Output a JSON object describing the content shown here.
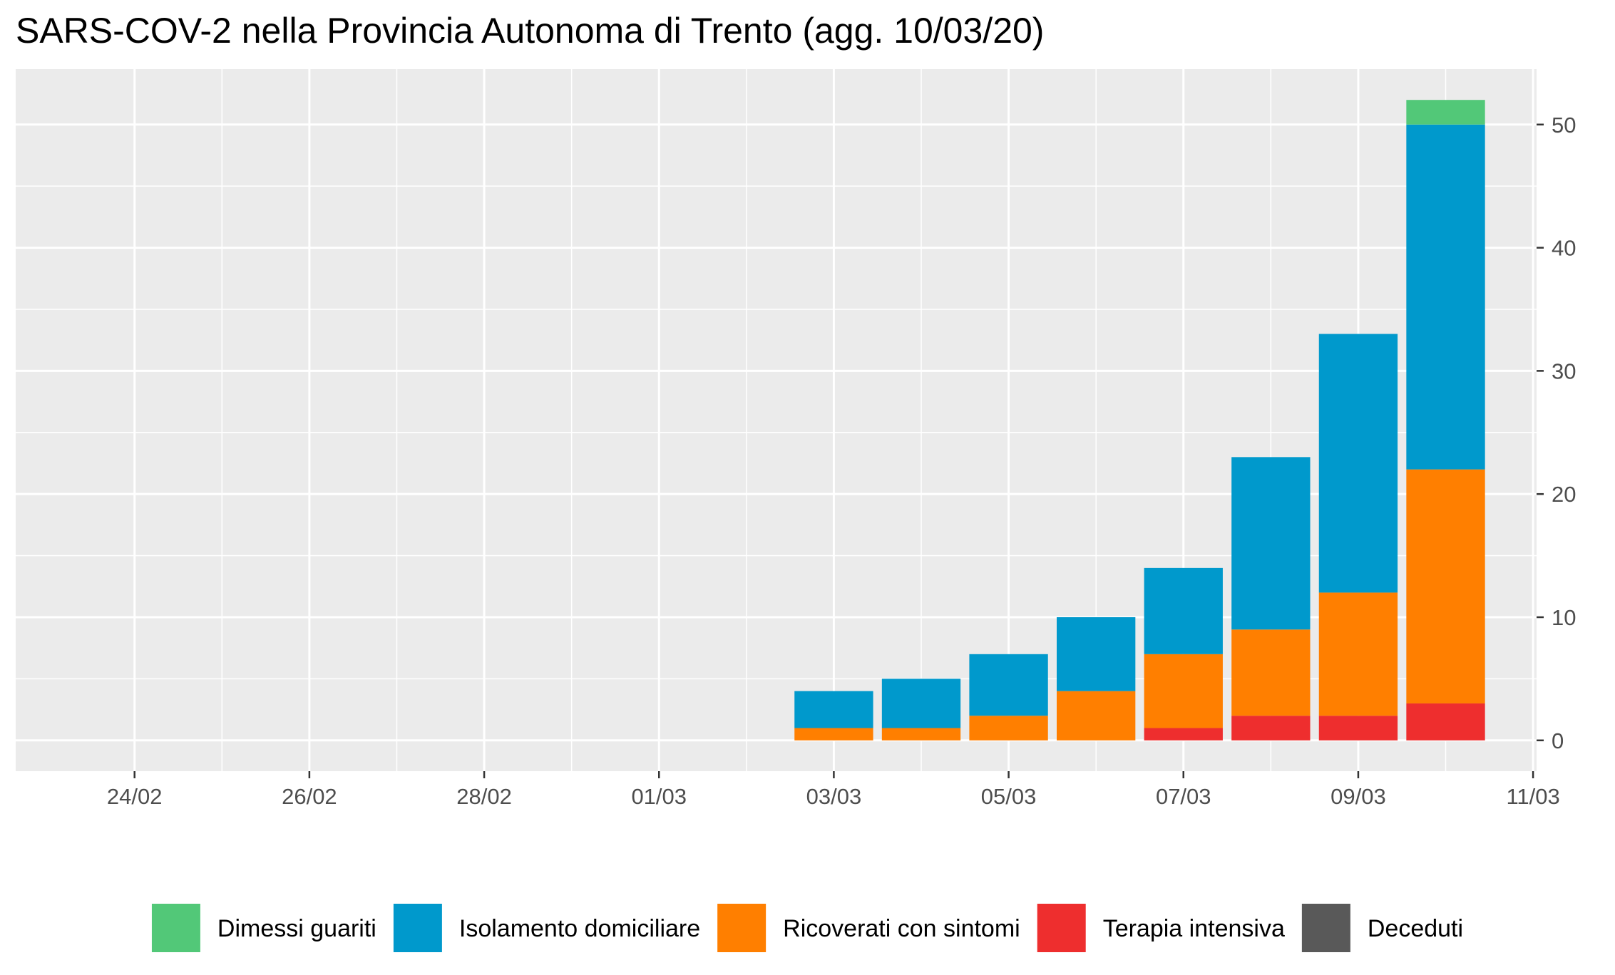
{
  "chart_data": {
    "type": "bar",
    "stacked": true,
    "title": "SARS-COV-2 nella Provincia Autonoma di Trento (agg. 10/03/20)",
    "xlabel": "",
    "ylabel": "",
    "x_axis": {
      "range": [
        "23/02",
        "11/03"
      ],
      "ticks": [
        "24/02",
        "26/02",
        "28/02",
        "01/03",
        "03/03",
        "05/03",
        "07/03",
        "09/03",
        "11/03"
      ]
    },
    "y_axis": {
      "position": "right",
      "range": [
        -2.5,
        54.5
      ],
      "ticks": [
        0,
        10,
        20,
        30,
        40,
        50
      ]
    },
    "categories": [
      "03/03",
      "04/03",
      "05/03",
      "06/03",
      "07/03",
      "08/03",
      "09/03",
      "10/03"
    ],
    "series": [
      {
        "name": "Terapia intensiva",
        "color": "#ee2e2e",
        "values": [
          0,
          0,
          0,
          0,
          1,
          2,
          2,
          3
        ]
      },
      {
        "name": "Ricoverati con sintomi",
        "color": "#ff7f00",
        "values": [
          1,
          1,
          2,
          4,
          6,
          7,
          10,
          19
        ]
      },
      {
        "name": "Isolamento domiciliare",
        "color": "#0099cc",
        "values": [
          3,
          4,
          5,
          6,
          7,
          14,
          21,
          28
        ]
      },
      {
        "name": "Dimessi guariti",
        "color": "#52c878",
        "values": [
          0,
          0,
          0,
          0,
          0,
          0,
          0,
          2
        ]
      },
      {
        "name": "Deceduti",
        "color": "#595959",
        "values": [
          0,
          0,
          0,
          0,
          0,
          0,
          0,
          0
        ]
      }
    ],
    "legend": {
      "placement": "bottom",
      "order": [
        "Dimessi guariti",
        "Isolamento domiciliare",
        "Ricoverati con sintomi",
        "Terapia intensiva",
        "Deceduti"
      ]
    },
    "grid": true,
    "panel_background": "#ebebeb",
    "grid_color": "#ffffff"
  }
}
